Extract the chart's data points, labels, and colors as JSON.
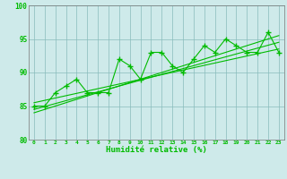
{
  "title": "",
  "xlabel": "Humidité relative (%)",
  "xlim": [
    -0.5,
    23.5
  ],
  "ylim": [
    80,
    100
  ],
  "yticks": [
    80,
    85,
    90,
    95,
    100
  ],
  "xtick_labels": [
    "0",
    "1",
    "2",
    "3",
    "4",
    "5",
    "6",
    "7",
    "8",
    "9",
    "10",
    "11",
    "12",
    "13",
    "14",
    "15",
    "16",
    "17",
    "18",
    "19",
    "20",
    "21",
    "22",
    "23"
  ],
  "bg_color": "#ceeaea",
  "grid_color": "#88bbbb",
  "line_color": "#00bb00",
  "line1_x": [
    0,
    1,
    2,
    3,
    4,
    5,
    6,
    7,
    8,
    9,
    10,
    11,
    12,
    13,
    14,
    15,
    16,
    17,
    18,
    19,
    20,
    21,
    22,
    23
  ],
  "line1_y": [
    85,
    85,
    87,
    88,
    89,
    87,
    87,
    87,
    92,
    91,
    89,
    93,
    93,
    91,
    90,
    92,
    94,
    93,
    95,
    94,
    93,
    93,
    96,
    93
  ],
  "trend1_x": [
    0,
    23
  ],
  "trend1_y": [
    84.5,
    94.5
  ],
  "trend2_x": [
    0,
    23
  ],
  "trend2_y": [
    84.0,
    95.5
  ],
  "trend3_x": [
    0,
    23
  ],
  "trend3_y": [
    85.5,
    93.5
  ]
}
